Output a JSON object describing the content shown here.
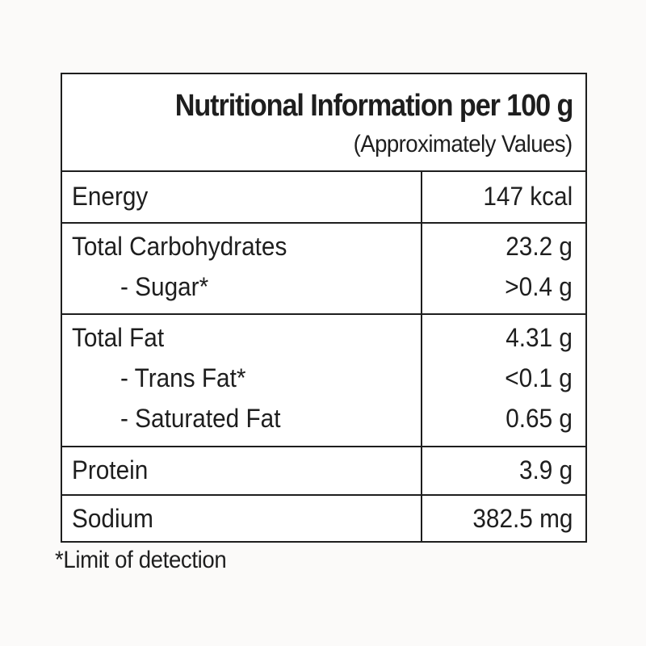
{
  "label": {
    "title": "Nutritional Information per 100 g",
    "subtitle": "(Approximately Values)",
    "rows": [
      {
        "lines": [
          {
            "name": "Energy",
            "value": "147 kcal",
            "sub": false
          }
        ]
      },
      {
        "lines": [
          {
            "name": "Total Carbohydrates",
            "value": "23.2 g",
            "sub": false
          },
          {
            "name": "- Sugar*",
            "value": ">0.4 g",
            "sub": true
          }
        ]
      },
      {
        "lines": [
          {
            "name": "Total Fat",
            "value": "4.31 g",
            "sub": false
          },
          {
            "name": "- Trans Fat*",
            "value": "<0.1 g",
            "sub": true
          },
          {
            "name": "- Saturated Fat",
            "value": "0.65 g",
            "sub": true
          }
        ]
      },
      {
        "lines": [
          {
            "name": "Protein",
            "value": "3.9 g",
            "sub": false
          }
        ]
      },
      {
        "lines": [
          {
            "name": "Sodium",
            "value": "382.5 mg",
            "sub": false
          }
        ]
      }
    ]
  },
  "footnote": "*Limit of detection"
}
